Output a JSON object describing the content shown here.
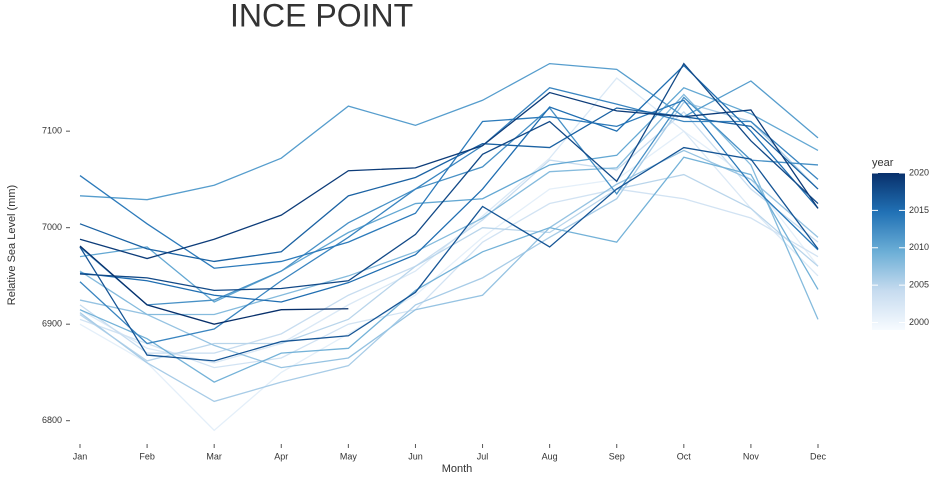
{
  "chart_data": {
    "type": "line",
    "title": "INCE POINT",
    "x_label": "Month",
    "y_label": "Relative Sea Level (mm)",
    "categories": [
      "Jan",
      "Feb",
      "Mar",
      "Apr",
      "May",
      "Jun",
      "Jul",
      "Aug",
      "Sep",
      "Oct",
      "Nov",
      "Dec"
    ],
    "ylim": [
      6780,
      7210
    ],
    "yticks": [
      6800,
      6900,
      7000,
      7100
    ],
    "colorbar": {
      "title": "year",
      "lim": [
        1999,
        2020
      ],
      "ticks": [
        2000,
        2005,
        2010,
        2015,
        2020
      ],
      "colors": [
        "#f7fbff",
        "#c6dbef",
        "#6baed6",
        "#2171b5",
        "#08306b"
      ]
    },
    "series": [
      {
        "year": 2001,
        "values": [
          6900,
          6860,
          6790,
          6850,
          6890,
          6930,
          6990,
          7040,
          7050,
          7100,
          7050,
          6960
        ]
      },
      {
        "year": 2002,
        "values": [
          6915,
          6875,
          6860,
          6880,
          6920,
          6955,
          7012,
          7072,
          7155,
          7100,
          7020,
          6950
        ]
      },
      {
        "year": 2003,
        "values": [
          6905,
          6880,
          6855,
          6865,
          6900,
          6915,
          6985,
          7025,
          7040,
          7030,
          7010,
          6970
        ]
      },
      {
        "year": 2004,
        "values": [
          6920,
          6870,
          6870,
          6890,
          6930,
          6960,
          7008,
          7070,
          7060,
          7120,
          7040,
          6985
        ]
      },
      {
        "year": 2005,
        "values": [
          6910,
          6862,
          6880,
          6880,
          6905,
          6960,
          7000,
          6995,
          7040,
          7055,
          7020,
          6960
        ]
      },
      {
        "year": 2006,
        "values": [
          6912,
          6860,
          6820,
          6840,
          6857,
          6920,
          6948,
          6990,
          7030,
          7130,
          7110,
          7040
        ]
      },
      {
        "year": 2007,
        "values": [
          6925,
          6910,
          6878,
          6855,
          6865,
          6915,
          6930,
          7000,
          7045,
          7080,
          7050,
          6990
        ]
      },
      {
        "year": 2008,
        "values": [
          6955,
          6910,
          6910,
          6930,
          6950,
          6975,
          7010,
          7058,
          7062,
          7138,
          7065,
          6905
        ]
      },
      {
        "year": 2009,
        "values": [
          6915,
          6885,
          6840,
          6870,
          6875,
          6935,
          6975,
          7000,
          6985,
          7073,
          7055,
          6936
        ]
      },
      {
        "year": 2010,
        "values": [
          6970,
          6980,
          6923,
          6955,
          6995,
          7025,
          7030,
          7065,
          7075,
          7145,
          7118,
          7080
        ]
      },
      {
        "year": 2011,
        "values": [
          7033,
          7029,
          7044,
          7072,
          7126,
          7106,
          7132,
          7170,
          7164,
          7115,
          7152,
          7093
        ]
      },
      {
        "year": 2012,
        "values": [
          6980,
          6920,
          6925,
          6955,
          7005,
          7040,
          7063,
          7124,
          7035,
          7135,
          7070,
          7065
        ]
      },
      {
        "year": 2013,
        "values": [
          6944,
          6880,
          6895,
          6945,
          6990,
          7040,
          7085,
          7145,
          7128,
          7110,
          7110,
          7050
        ]
      },
      {
        "year": 2014,
        "values": [
          7054,
          7004,
          6958,
          6965,
          6985,
          7015,
          7110,
          7115,
          7105,
          7132,
          7045,
          6977
        ]
      },
      {
        "year": 2015,
        "values": [
          6953,
          6945,
          6930,
          6923,
          6943,
          6972,
          7040,
          7125,
          7100,
          7168,
          7100,
          7020
        ]
      },
      {
        "year": 2016,
        "values": [
          7004,
          6978,
          6965,
          6975,
          7033,
          7052,
          7087,
          7083,
          7124,
          7115,
          7105,
          7040
        ]
      },
      {
        "year": 2017,
        "values": [
          6980,
          6868,
          6862,
          6882,
          6888,
          6933,
          7022,
          6980,
          7040,
          7083,
          7071,
          6978
        ]
      },
      {
        "year": 2018,
        "values": [
          6952,
          6948,
          6935,
          6937,
          6945,
          6993,
          7076,
          7110,
          7048,
          7170,
          7090,
          7025
        ]
      },
      {
        "year": 2019,
        "values": [
          6988,
          6968,
          6988,
          7013,
          7059,
          7062,
          7085,
          7140,
          7121,
          7115,
          7122,
          7020
        ]
      },
      {
        "year": 2020,
        "values": [
          6981,
          6920,
          6900,
          6915,
          6916,
          null,
          null,
          null,
          null,
          null,
          null,
          null
        ]
      }
    ]
  }
}
